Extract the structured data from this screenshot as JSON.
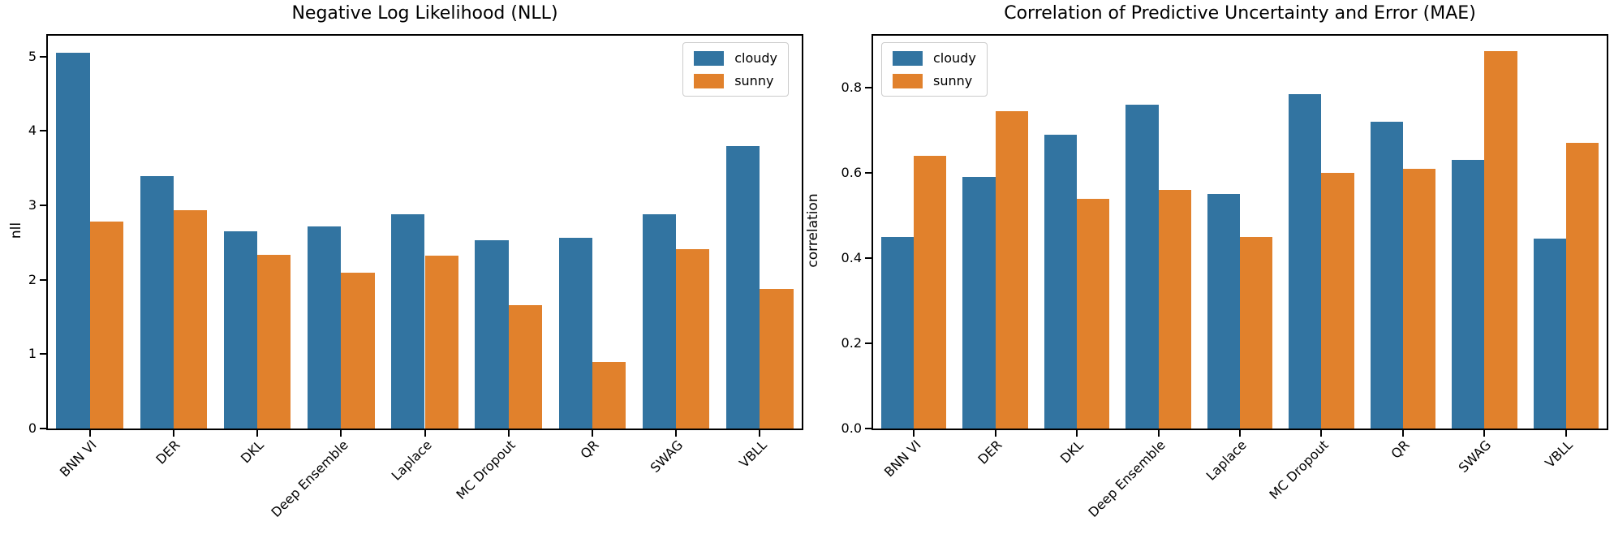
{
  "figure": {
    "background": "#ffffff"
  },
  "colors": {
    "cloudy": "#3274a1",
    "sunny": "#e1812c",
    "spine": "#000000",
    "legend_border": "#cccccc"
  },
  "chart_data": [
    {
      "type": "bar",
      "title": "Negative Log Likelihood (NLL)",
      "xlabel": "",
      "ylabel": "nll",
      "categories": [
        "BNN VI",
        "DER",
        "DKL",
        "Deep Ensemble",
        "Laplace",
        "MC Dropout",
        "QR",
        "SWAG",
        "VBLL"
      ],
      "series": [
        {
          "name": "cloudy",
          "color": "#3274a1",
          "values": [
            5.05,
            3.39,
            2.65,
            2.72,
            2.88,
            2.53,
            2.56,
            2.88,
            3.8
          ]
        },
        {
          "name": "sunny",
          "color": "#e1812c",
          "values": [
            2.78,
            2.93,
            2.34,
            2.09,
            2.32,
            1.66,
            0.9,
            2.41,
            1.88
          ]
        }
      ],
      "yticks": [
        0,
        1,
        2,
        3,
        4,
        5
      ],
      "ytick_labels": [
        "0",
        "1",
        "2",
        "3",
        "4",
        "5"
      ],
      "ylim": [
        0,
        5.28
      ],
      "grid": false,
      "legend_position": "top-right"
    },
    {
      "type": "bar",
      "title": "Correlation of Predictive Uncertainty and Error (MAE)",
      "xlabel": "",
      "ylabel": "correlation",
      "categories": [
        "BNN VI",
        "DER",
        "DKL",
        "Deep Ensemble",
        "Laplace",
        "MC Dropout",
        "QR",
        "SWAG",
        "VBLL"
      ],
      "series": [
        {
          "name": "cloudy",
          "color": "#3274a1",
          "values": [
            0.45,
            0.59,
            0.69,
            0.76,
            0.55,
            0.785,
            0.72,
            0.63,
            0.445
          ]
        },
        {
          "name": "sunny",
          "color": "#e1812c",
          "values": [
            0.64,
            0.745,
            0.54,
            0.56,
            0.45,
            0.6,
            0.61,
            0.885,
            0.67
          ]
        }
      ],
      "yticks": [
        0,
        0.2,
        0.4,
        0.6,
        0.8
      ],
      "ytick_labels": [
        "0.0",
        "0.2",
        "0.4",
        "0.6",
        "0.8"
      ],
      "ylim": [
        0,
        0.922
      ],
      "grid": false,
      "legend_position": "top-left"
    }
  ]
}
